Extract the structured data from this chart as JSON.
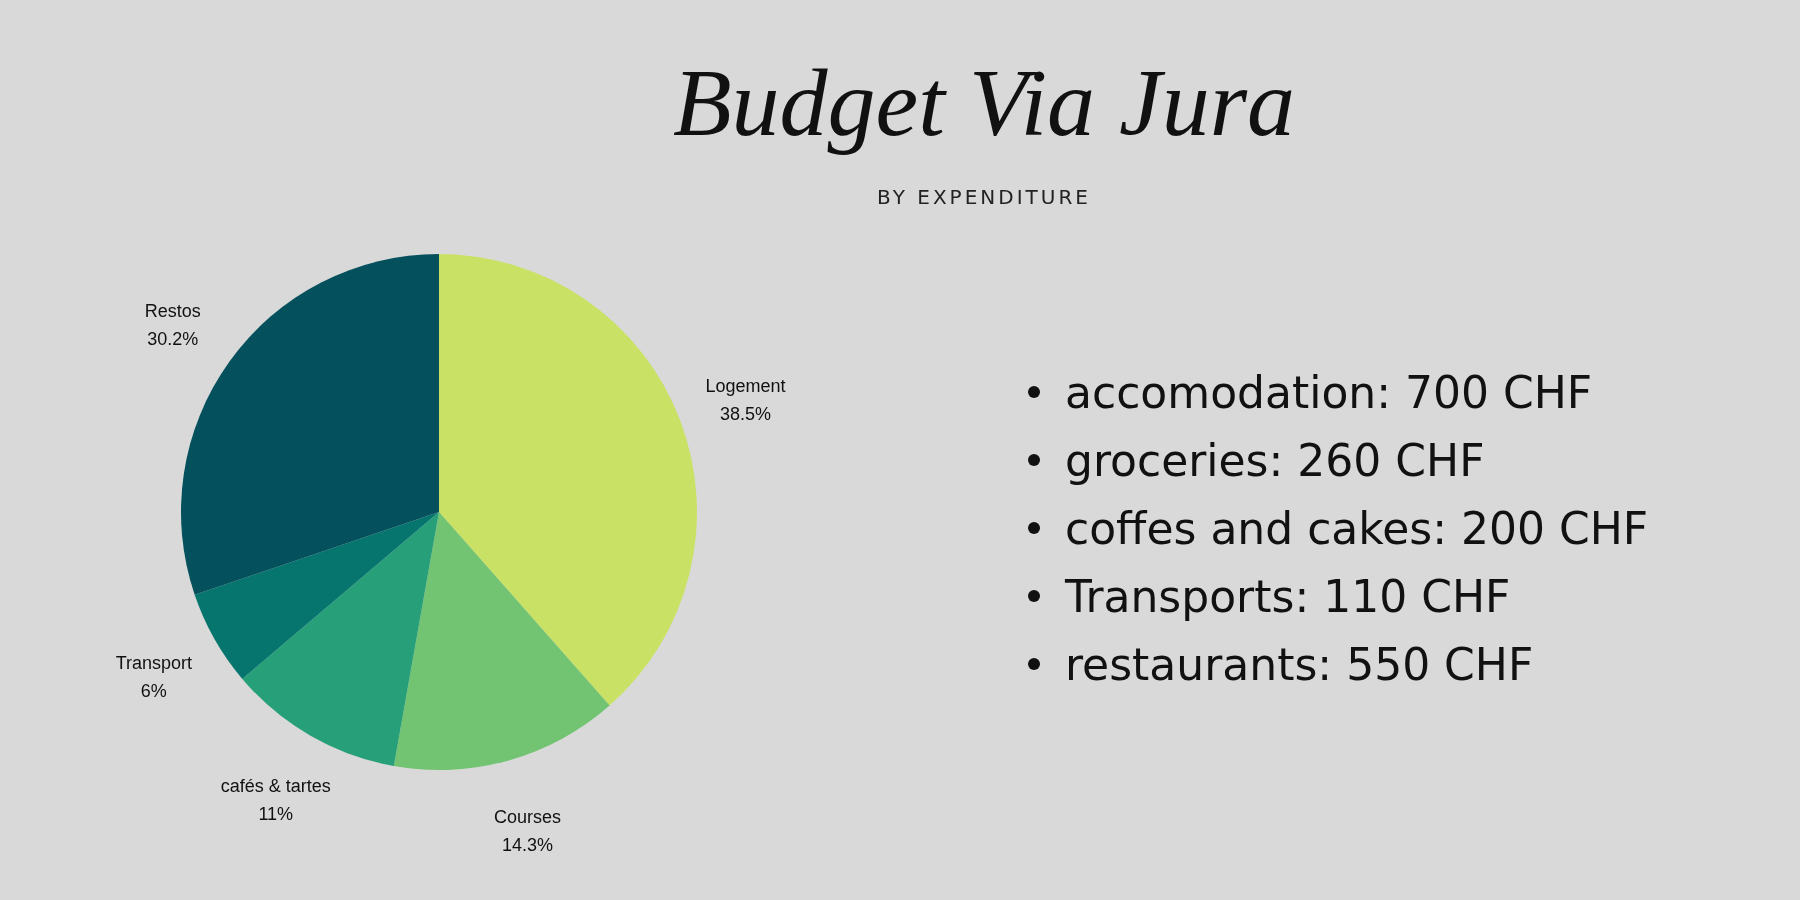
{
  "chart_data": {
    "type": "pie",
    "title": "Budget Via Jura",
    "subtitle": "BY EXPENDITURE",
    "categories": [
      "Logement",
      "Courses",
      "cafés & tartes",
      "Transport",
      "Restos"
    ],
    "values": [
      38.5,
      14.3,
      11,
      6,
      30.2
    ],
    "value_labels": [
      "38.5%",
      "14.3%",
      "11%",
      "6%",
      "30.2%"
    ],
    "colors": [
      "#c9e265",
      "#72c472",
      "#27a07a",
      "#05756e",
      "#04505c"
    ],
    "annotations": [
      "accomodation: 700 CHF",
      "groceries: 260 CHF",
      "coffes and cakes: 200 CHF",
      "Transports: 110 CHF",
      "restaurants: 550 CHF"
    ]
  }
}
